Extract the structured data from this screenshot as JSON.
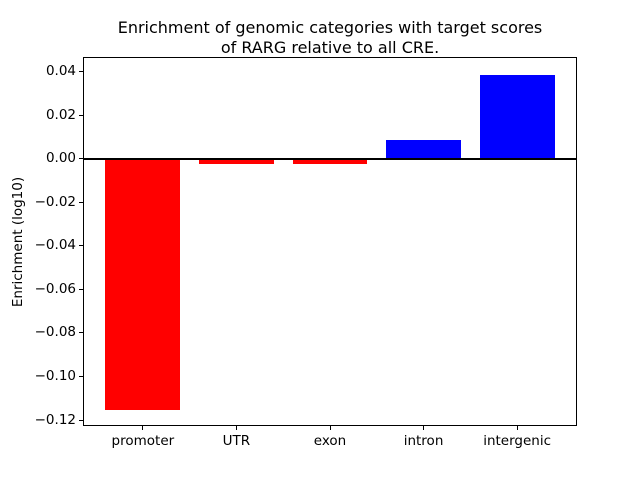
{
  "title": {
    "line1": "Enrichment of genomic categories with target scores",
    "line2": "of RARG relative to all CRE."
  },
  "ylabel": "Enrichment (log10)",
  "chart_data": {
    "type": "bar",
    "title": "Enrichment of genomic categories with target scores of RARG relative to all CRE.",
    "xlabel": "",
    "ylabel": "Enrichment (log10)",
    "categories": [
      "promoter",
      "UTR",
      "exon",
      "intron",
      "intergenic"
    ],
    "values": [
      -0.115,
      -0.002,
      -0.002,
      0.009,
      0.039
    ],
    "bar_colors": [
      "#ff0000",
      "#ff0000",
      "#ff0000",
      "#0000ff",
      "#0000ff"
    ],
    "negative_color": "#ff0000",
    "positive_color": "#0000ff",
    "ylim": [
      -0.1227,
      0.0467
    ],
    "xlim": [
      -0.64,
      4.64
    ],
    "bar_width_units": 0.8,
    "yticks": [
      0.04,
      0.02,
      0.0,
      -0.02,
      -0.04,
      -0.06,
      -0.08,
      -0.1,
      -0.12
    ],
    "ytick_labels": [
      "0.04",
      "0.02",
      "0.00",
      "−0.02",
      "−0.04",
      "−0.06",
      "−0.08",
      "−0.10",
      "−0.12"
    ],
    "zero_line": true,
    "grid": false,
    "legend": null
  }
}
